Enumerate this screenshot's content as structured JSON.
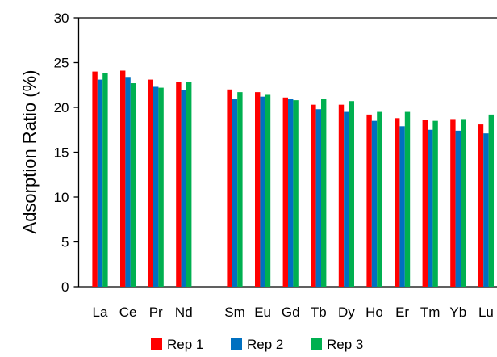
{
  "chart_data": {
    "type": "bar",
    "title": "",
    "xlabel": "",
    "ylabel": "Adsorption Ratio (%)",
    "ylim": [
      0,
      30
    ],
    "yticks": [
      "0",
      "5",
      "10",
      "15",
      "20",
      "25",
      "30"
    ],
    "grid": false,
    "legend_position": "bottom",
    "category_groups": [
      [
        "La",
        "Ce",
        "Pr",
        "Nd"
      ],
      [
        "Sm",
        "Eu",
        "Gd",
        "Tb",
        "Dy",
        "Ho",
        "Er",
        "Tm",
        "Yb",
        "Lu"
      ]
    ],
    "categories": [
      "La",
      "Ce",
      "Pr",
      "Nd",
      "Sm",
      "Eu",
      "Gd",
      "Tb",
      "Dy",
      "Ho",
      "Er",
      "Tm",
      "Yb",
      "Lu"
    ],
    "series": [
      {
        "name": "Rep 1",
        "color": "#ff0000",
        "values": [
          24.0,
          24.1,
          23.1,
          22.8,
          22.0,
          21.7,
          21.1,
          20.3,
          20.3,
          19.2,
          18.8,
          18.6,
          18.7,
          18.1
        ]
      },
      {
        "name": "Rep 2",
        "color": "#0070c0",
        "values": [
          23.1,
          23.4,
          22.3,
          21.9,
          20.9,
          21.2,
          20.9,
          19.8,
          19.5,
          18.5,
          17.9,
          17.5,
          17.4,
          17.1
        ]
      },
      {
        "name": "Rep 3",
        "color": "#00b050",
        "values": [
          23.8,
          22.7,
          22.2,
          22.8,
          21.7,
          21.4,
          20.8,
          20.9,
          20.7,
          19.5,
          19.5,
          18.5,
          18.7,
          19.2
        ]
      }
    ]
  }
}
